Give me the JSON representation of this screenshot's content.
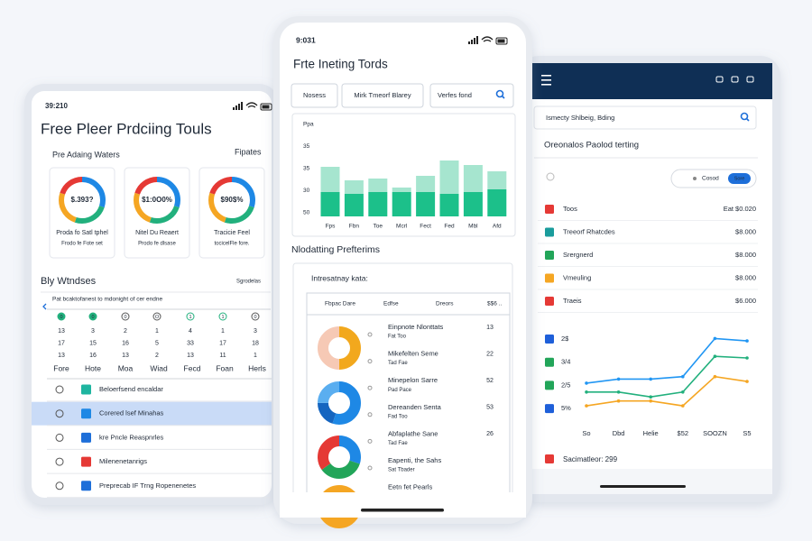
{
  "left": {
    "time": "39:210",
    "title": "Free Pleer Prdciing Touls",
    "subtitle": "Pre Adaing Waters",
    "link": "Fipates",
    "cards": [
      {
        "value": "$.393?",
        "label": "Proda fo Satl tphel",
        "sub": "Frodo fe Fote set"
      },
      {
        "value": "$1:0O0%",
        "label": "Nitel Du Reaert",
        "sub": "Prodo fe dlsase"
      },
      {
        "value": "$90$%",
        "label": "Tracicie Feel",
        "sub": "tocicelFle fore."
      }
    ],
    "section": "Bly Wtndses",
    "section_link": "Sgrodelas",
    "calendar": {
      "caption": "Pat bcaktofanest to mdonight of cer endne",
      "icons": [
        "0",
        "0",
        "0",
        "O",
        "1",
        "1",
        "0"
      ],
      "rows": [
        [
          "13",
          "3",
          "2",
          "1",
          "4",
          "1",
          "3"
        ],
        [
          "17",
          "15",
          "16",
          "5",
          "33",
          "17",
          "18"
        ],
        [
          "13",
          "16",
          "13",
          "2",
          "13",
          "11",
          "1"
        ]
      ],
      "days": [
        "Fore",
        "Hote",
        "Moa",
        "Wiad",
        "Fecd",
        "Foan",
        "Herls"
      ]
    },
    "items": [
      {
        "name": "Beloerfsend encaldar",
        "color": "#1fb5a0"
      },
      {
        "name": "Corered lsef Minahas",
        "color": "#1e88e5"
      },
      {
        "name": "kre Pncle Reaspnrles",
        "color": "#1e6fd9"
      },
      {
        "name": "Milenenetanrigs",
        "color": "#e53935"
      },
      {
        "name": "Preprecab IF Trng Ropenenetes",
        "color": "#1e6fd9"
      }
    ]
  },
  "middle": {
    "time": "9:031",
    "title": "Frte Ineting Tords",
    "inputs": [
      "Nosess",
      "Mirk Tmeorf Blarey",
      "Verfes fond"
    ],
    "chart": {
      "type": "bar",
      "y_labels": [
        "Ppa",
        "35",
        "35",
        "30",
        "50"
      ],
      "categories": [
        "Fps",
        "Fbn",
        "Toe",
        "Mcrl",
        "Fect",
        "Fed",
        "Mbl",
        "Afd"
      ],
      "ylim": [
        0,
        100
      ],
      "series": [
        {
          "color": "#1cc08a",
          "values": [
            27,
            25,
            27,
            27,
            27,
            25,
            27,
            30
          ]
        },
        {
          "color": "#a6e5cf",
          "values": [
            28,
            15,
            15,
            5,
            18,
            37,
            30,
            20
          ]
        }
      ]
    },
    "section": "Nlodatting Prefterims",
    "card_title": "Intresatnay kata:",
    "table_header": [
      "Fbpac Dare",
      "Edfse",
      "Dreors",
      "$$6 .."
    ],
    "items": [
      {
        "name": "Einpnote Nlonttats",
        "sub": "Fat Too",
        "value": "13"
      },
      {
        "name": "Mikefelten Seme",
        "sub": "Tad Fae",
        "value": "22"
      },
      {
        "name": "Minepelon Sarre",
        "sub": "Pad Pace",
        "value": "52"
      },
      {
        "name": "Dereanden Senta",
        "sub": "Fad Too",
        "value": "53"
      },
      {
        "name": "Abfaplathe Sane",
        "sub": "Tad Fae",
        "value": "26"
      },
      {
        "name": "Eapenti, the Sahs",
        "sub": "Sat Tbader"
      },
      {
        "name": "Eetn fet Pearls"
      }
    ]
  },
  "right": {
    "search": "Ismecty Shlbeig, Bding",
    "title": "Oreonalos Paolod terting",
    "toggle": "Cosod",
    "button": "Sore",
    "items": [
      {
        "name": "Toos",
        "price": "Eat $0.020",
        "color": "#e53935"
      },
      {
        "name": "Treeorf Rhatcdes",
        "price": "$8.000",
        "color": "#1a9c9c"
      },
      {
        "name": "Srergnerd",
        "price": "$8.000",
        "color": "#22a559"
      },
      {
        "name": "Vmeuling",
        "price": "$8.000",
        "color": "#f5a623"
      },
      {
        "name": "Traeis",
        "price": "$6.000",
        "color": "#e53935"
      }
    ],
    "chart": {
      "type": "line",
      "y_labels": [
        "2$",
        "3/4",
        "2/5",
        "5%"
      ],
      "y_label_colors": [
        "#1e5fd9",
        "#22a559",
        "#22a559",
        "#1e5fd9"
      ],
      "categories": [
        "So",
        "Dbd",
        "Helie",
        "$52",
        "SOOZN",
        "S5"
      ],
      "ylim": [
        0,
        100
      ],
      "series": [
        {
          "color": "#2196f3",
          "values": [
            39,
            44,
            44,
            47,
            94,
            91
          ]
        },
        {
          "color": "#22b07d",
          "values": [
            28,
            28,
            22,
            28,
            72,
            70
          ]
        },
        {
          "color": "#f5a623",
          "values": [
            11,
            17,
            17,
            11,
            47,
            41
          ]
        }
      ]
    },
    "footer": "Sacimatleor: 299"
  }
}
